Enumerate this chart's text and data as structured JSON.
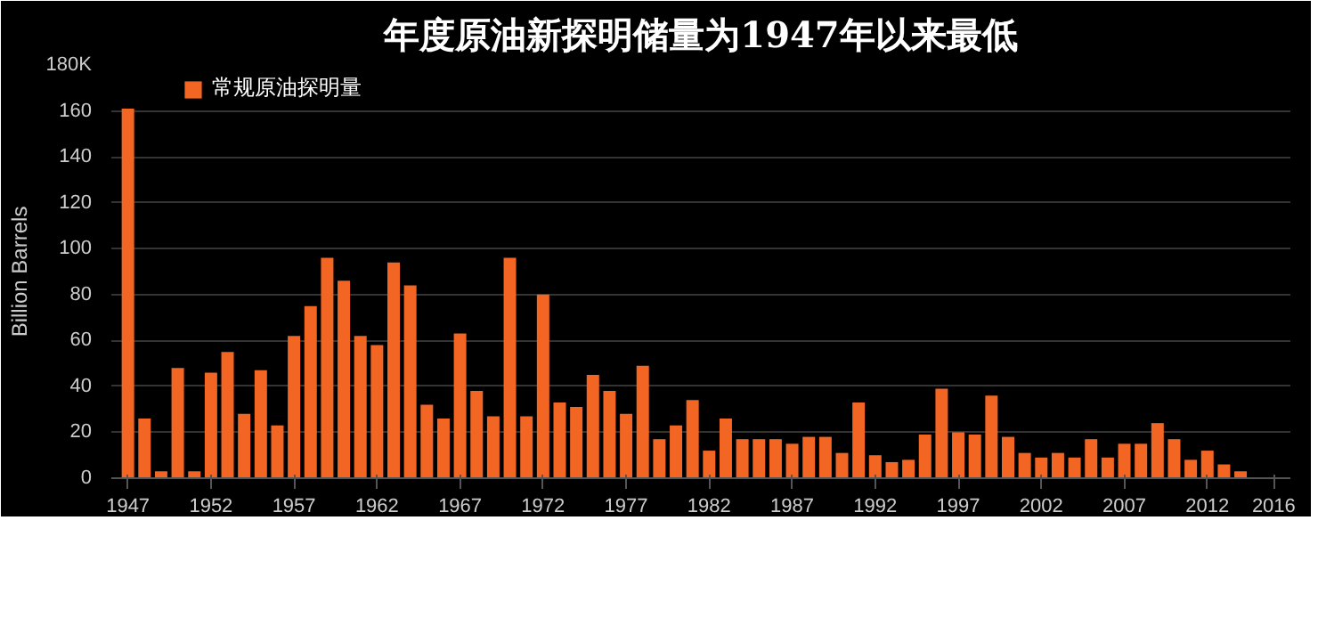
{
  "chart_data": {
    "type": "bar",
    "title": "年度原油新探明储量为1947年以来最低",
    "ylabel": "Billion Barrels",
    "x": [
      1947,
      1948,
      1949,
      1950,
      1951,
      1952,
      1953,
      1954,
      1955,
      1956,
      1957,
      1958,
      1959,
      1960,
      1961,
      1962,
      1963,
      1964,
      1965,
      1966,
      1967,
      1968,
      1969,
      1970,
      1971,
      1972,
      1973,
      1974,
      1975,
      1976,
      1977,
      1978,
      1979,
      1980,
      1981,
      1982,
      1983,
      1984,
      1985,
      1986,
      1987,
      1988,
      1989,
      1990,
      1991,
      1992,
      1993,
      1994,
      1995,
      1996,
      1997,
      1998,
      1999,
      2000,
      2001,
      2002,
      2003,
      2004,
      2005,
      2006,
      2007,
      2008,
      2009,
      2010,
      2011,
      2012,
      2013,
      2014
    ],
    "series": [
      {
        "name": "常规原油探明量",
        "color": "#f26522",
        "values": [
          161,
          26,
          3,
          48,
          3,
          46,
          55,
          28,
          47,
          23,
          62,
          75,
          96,
          86,
          62,
          58,
          94,
          84,
          32,
          26,
          63,
          38,
          27,
          96,
          27,
          80,
          33,
          31,
          45,
          38,
          28,
          49,
          17,
          23,
          34,
          12,
          26,
          17,
          17,
          17,
          15,
          18,
          18,
          11,
          33,
          10,
          7,
          8,
          19,
          39,
          20,
          19,
          36,
          18,
          11,
          9,
          11,
          9,
          17,
          9,
          15,
          15,
          24,
          17,
          8,
          12,
          6,
          3
        ]
      }
    ],
    "xlim": [
      1946,
      2017
    ],
    "xticks": [
      1947,
      1952,
      1957,
      1962,
      1967,
      1972,
      1977,
      1982,
      1987,
      1992,
      1997,
      2002,
      2007,
      2012,
      2016
    ],
    "ylim": [
      0,
      180
    ],
    "yticks": [
      0,
      20,
      40,
      60,
      80,
      100,
      120,
      140,
      160,
      {
        "value": 180,
        "label": "180K"
      }
    ],
    "grid": "y",
    "legend": "top left"
  }
}
